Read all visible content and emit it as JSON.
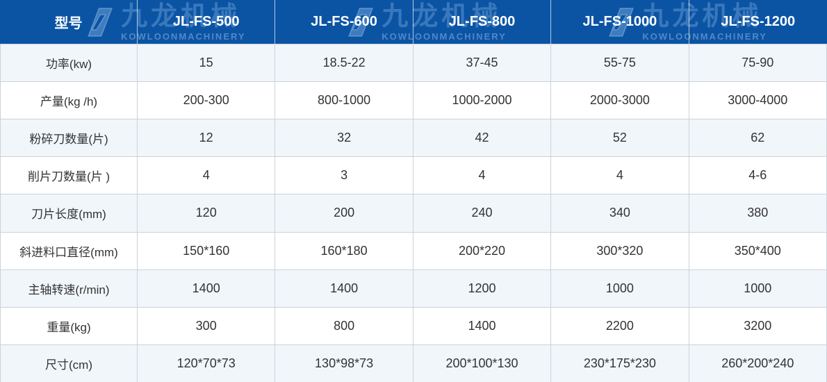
{
  "brand": {
    "watermark_cn": "九龙机械",
    "watermark_en": "KOWLOONMACHINERY"
  },
  "colors": {
    "header_bg": "#0b54a4",
    "stripe_bg": "#f1f6fb",
    "border": "#ccd2d8",
    "header_text": "#ffffff",
    "cell_text": "#333333",
    "watermark_blue": "#3b78c0"
  },
  "chart_data": {
    "type": "table",
    "title": "",
    "columns": [
      "型号",
      "JL-FS-500",
      "JL-FS-600",
      "JL-FS-800",
      "JL-FS-1000",
      "JL-FS-1200"
    ],
    "rows": [
      {
        "label": "功率(kw)",
        "values": [
          "15",
          "18.5-22",
          "37-45",
          "55-75",
          "75-90"
        ]
      },
      {
        "label": "产量(kg /h)",
        "values": [
          "200-300",
          "800-1000",
          "1000-2000",
          "2000-3000",
          "3000-4000"
        ]
      },
      {
        "label": "粉碎刀数量(片)",
        "values": [
          "12",
          "32",
          "42",
          "52",
          "62"
        ]
      },
      {
        "label": "削片刀数量(片 )",
        "values": [
          "4",
          "3",
          "4",
          "4",
          "4-6"
        ]
      },
      {
        "label": "刀片长度(mm)",
        "values": [
          "120",
          "200",
          "240",
          "340",
          "380"
        ]
      },
      {
        "label": "斜进料口直径(mm)",
        "values": [
          "150*160",
          "160*180",
          "200*220",
          "300*320",
          "350*400"
        ]
      },
      {
        "label": "主轴转速(r/min)",
        "values": [
          "1400",
          "1400",
          "1200",
          "1000",
          "1000"
        ]
      },
      {
        "label": "重量(kg)",
        "values": [
          "300",
          "800",
          "1400",
          "2200",
          "3200"
        ]
      },
      {
        "label": "尺寸(cm)",
        "values": [
          "120*70*73",
          "130*98*73",
          "200*100*130",
          "230*175*230",
          "260*200*240"
        ]
      }
    ]
  }
}
